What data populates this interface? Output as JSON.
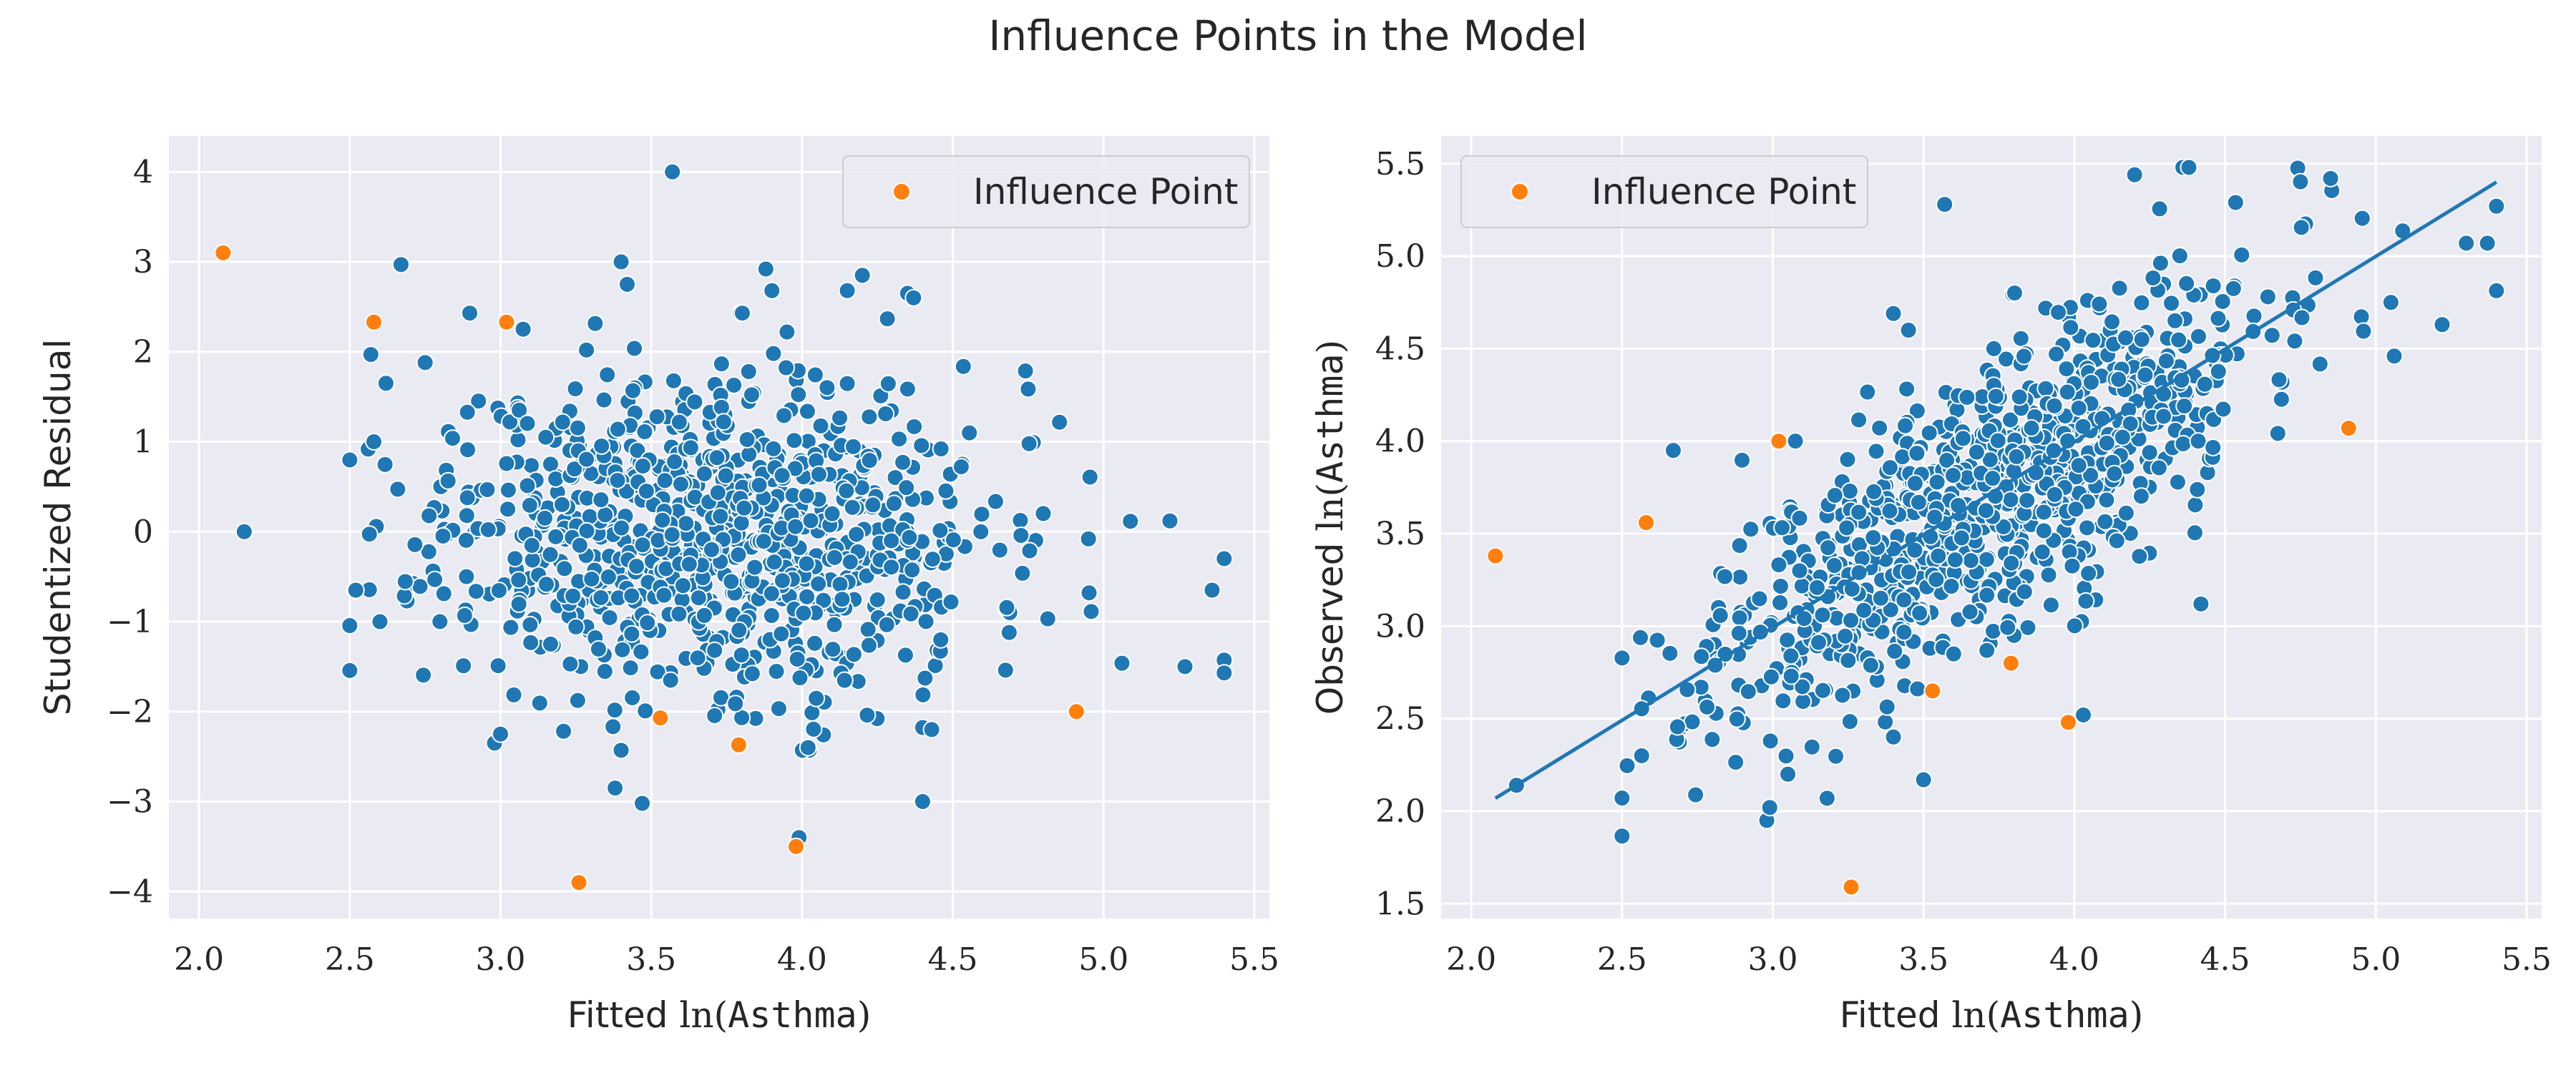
{
  "figure": {
    "title": "Influence Points in the Model"
  },
  "legend_label": "Influence Point",
  "colors": {
    "background": "#eaeaf2",
    "grid": "#ffffff",
    "normal_point": "#1f77b4",
    "influence_point": "#ff7f0e",
    "fit_line": "#1f77b4",
    "text": "#262626"
  },
  "chart_data": [
    {
      "type": "scatter",
      "xlabel": {
        "prefix": "Fitted ",
        "fn": "ln",
        "arg": "Asthma"
      },
      "ylabel": {
        "text": "Studentized Residual"
      },
      "xlim": [
        1.9,
        5.55
      ],
      "ylim": [
        -4.3,
        4.4
      ],
      "xticks": [
        2.0,
        2.5,
        3.0,
        3.5,
        4.0,
        4.5,
        5.0,
        5.5
      ],
      "xtick_labels": [
        "2.0",
        "2.5",
        "3.0",
        "3.5",
        "4.0",
        "4.5",
        "5.0",
        "5.5"
      ],
      "yticks": [
        -4,
        -3,
        -2,
        -1,
        0,
        1,
        2,
        3,
        4
      ],
      "ytick_labels": [
        "−4",
        "−3",
        "−2",
        "−1",
        "0",
        "1",
        "2",
        "3",
        "4"
      ],
      "grid": true,
      "legend_position": "top-right",
      "series": [
        {
          "role": "normal",
          "cloud": {
            "count": 900,
            "x_center": 3.7,
            "x_sd": 0.45,
            "y_sd": 0.9,
            "seed": 11
          },
          "x": [
            2.15,
            3.57,
            3.4,
            3.42,
            2.67,
            3.88,
            3.9,
            4.35,
            4.37,
            4.2,
            4.15,
            3.95,
            4.95,
            5.22,
            5.4,
            5.36,
            5.27,
            5.4,
            4.43,
            4.4,
            3.99,
            4.02,
            3.47,
            3.38,
            2.52,
            2.58,
            3.15,
            2.98,
            2.6,
            2.57,
            2.62,
            2.75,
            3.0,
            3.7,
            4.1
          ],
          "y": [
            0.0,
            4.0,
            3.0,
            2.75,
            2.97,
            2.92,
            2.68,
            2.65,
            2.6,
            2.85,
            2.68,
            2.22,
            -0.08,
            0.12,
            -0.3,
            -0.65,
            -1.5,
            -1.57,
            -2.2,
            -3.0,
            -3.4,
            -2.4,
            -3.02,
            -2.85,
            -0.65,
            1.0,
            1.05,
            -2.35,
            -1.0,
            1.97,
            1.65,
            1.88,
            -2.25,
            -0.2,
            0.2
          ]
        },
        {
          "role": "influence",
          "name": "Influence Point",
          "x": [
            2.08,
            2.58,
            3.02,
            3.53,
            3.79,
            3.98,
            4.91,
            3.26
          ],
          "y": [
            3.1,
            2.33,
            2.33,
            -2.07,
            -2.37,
            -3.5,
            -2.0,
            -3.9
          ]
        }
      ]
    },
    {
      "type": "scatter",
      "xlabel": {
        "prefix": "Fitted ",
        "fn": "ln",
        "arg": "Asthma"
      },
      "ylabel": {
        "prefix": "Observed ",
        "fn": "ln",
        "arg": "Asthma"
      },
      "xlim": [
        1.9,
        5.55
      ],
      "ylim": [
        1.42,
        5.65
      ],
      "xticks": [
        2.0,
        2.5,
        3.0,
        3.5,
        4.0,
        4.5,
        5.0,
        5.5
      ],
      "xtick_labels": [
        "2.0",
        "2.5",
        "3.0",
        "3.5",
        "4.0",
        "4.5",
        "5.0",
        "5.5"
      ],
      "yticks": [
        1.5,
        2.0,
        2.5,
        3.0,
        3.5,
        4.0,
        4.5,
        5.0,
        5.5
      ],
      "ytick_labels": [
        "1.5",
        "2.0",
        "2.5",
        "3.0",
        "3.5",
        "4.0",
        "4.5",
        "5.0",
        "5.5"
      ],
      "grid": true,
      "legend_position": "top-left",
      "line": {
        "x": [
          2.08,
          5.4
        ],
        "y": [
          2.07,
          5.4
        ]
      },
      "series": [
        {
          "role": "normal",
          "cloud": {
            "count": 900,
            "x_center": 3.7,
            "x_sd": 0.45,
            "y_sd": 0.37,
            "seed": 11
          },
          "x": [
            2.15,
            3.57,
            4.36,
            4.38,
            4.2,
            2.67,
            3.4,
            3.45,
            2.98,
            2.99,
            3.05,
            3.18,
            3.5,
            3.6,
            4.03,
            4.42,
            5.4,
            5.37,
            5.3,
            5.22,
            5.05,
            4.85
          ],
          "y": [
            2.14,
            5.28,
            5.48,
            5.48,
            5.44,
            3.95,
            4.69,
            4.6,
            1.95,
            2.02,
            2.2,
            2.07,
            2.17,
            2.85,
            2.52,
            3.12,
            5.27,
            5.07,
            5.07,
            4.63,
            4.75,
            5.42
          ]
        },
        {
          "role": "influence",
          "name": "Influence Point",
          "x": [
            2.08,
            2.58,
            3.02,
            3.53,
            3.79,
            3.98,
            4.91,
            3.26
          ],
          "y": [
            3.38,
            3.56,
            4.0,
            2.65,
            2.8,
            2.48,
            4.07,
            1.59
          ]
        }
      ]
    }
  ]
}
